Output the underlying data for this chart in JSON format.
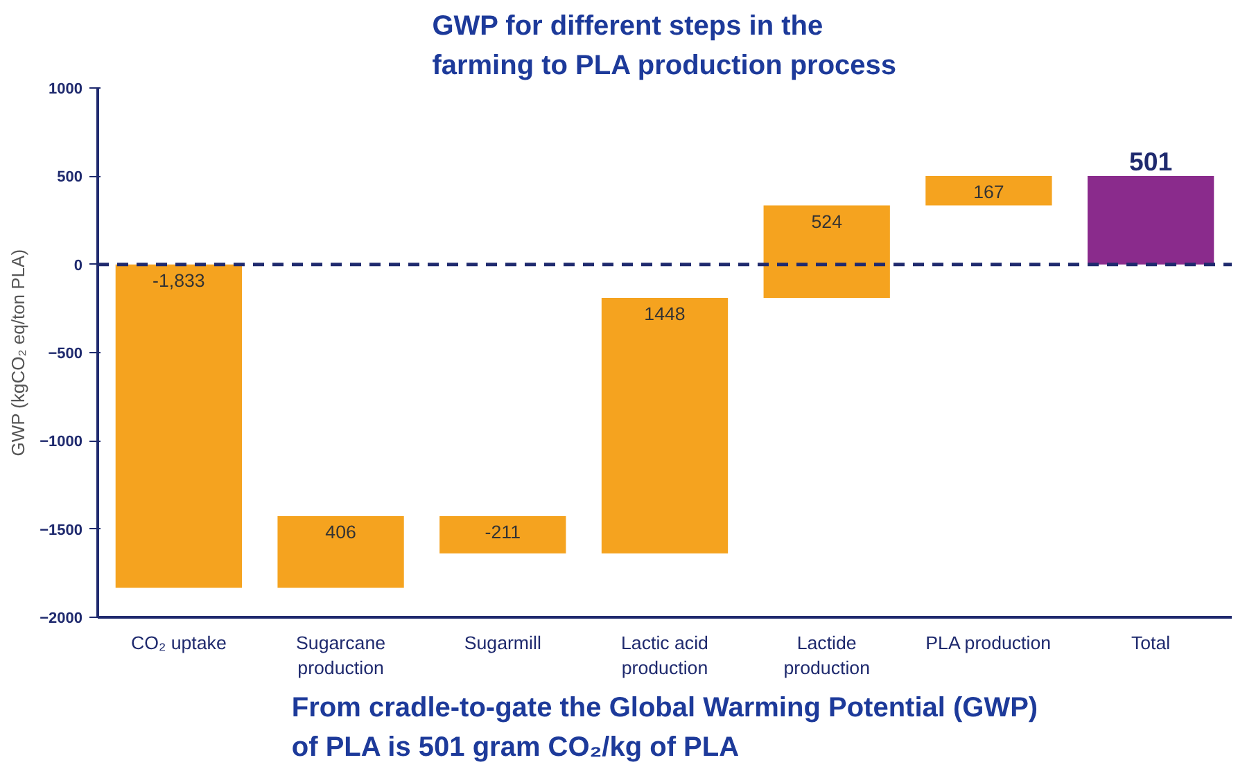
{
  "chart_data": {
    "type": "bar",
    "title": "GWP for different steps in the\nfarming to PLA production process",
    "ylabel": "GWP (kgCO₂ eq/ton PLA)",
    "categories": [
      "CO₂ uptake",
      "Sugarcane\nproduction",
      "Sugarmill",
      "Lactic acid\nproduction",
      "Lactide\nproduction",
      "PLA production",
      "Total"
    ],
    "values": [
      -1833,
      406,
      -211,
      1448,
      524,
      167,
      501
    ],
    "base": [
      0,
      -1833,
      -1427,
      -1638,
      -190,
      334,
      0
    ],
    "colors": [
      "#f5a31f",
      "#f5a31f",
      "#f5a31f",
      "#f5a31f",
      "#f5a31f",
      "#f5a31f",
      "#8a2b8c"
    ],
    "value_labels": [
      "-1,833",
      "406",
      "-211",
      "1448",
      "524",
      "167",
      "501"
    ],
    "ylim": [
      -2000,
      1000
    ],
    "yticks": [
      -2000,
      -1500,
      -1000,
      -500,
      0,
      500,
      1000
    ],
    "ref_lines": [
      {
        "axis": "y",
        "value": 0,
        "color": "#1f2a6e",
        "line_style": "dashed"
      }
    ],
    "grid": false,
    "annotations": [
      "From cradle-to-gate the Global Warming Potential (GWP)\nof PLA is 501 gram CO₂/kg of PLA"
    ]
  }
}
